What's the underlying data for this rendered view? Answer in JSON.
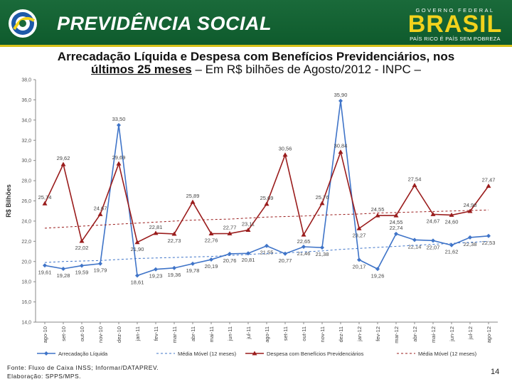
{
  "header": {
    "brand": "PREVIDÊNCIA SOCIAL",
    "gov_top": "GOVERNO FEDERAL",
    "gov_brasil": "BRASIL",
    "gov_motto": "PAÍS RICO É PAÍS SEM POBREZA",
    "colors": {
      "green": "#1a6a3a",
      "yellow": "#f2d21c",
      "blue": "#1e5aa8"
    }
  },
  "title": {
    "line1": "Arrecadação Líquida e Despesa com Benefícios Previdenciários, nos",
    "line2_bold": "últimos 25 meses",
    "line2_rest": " – Em R$ bilhões de Agosto/2012 - INPC –"
  },
  "chart_data": {
    "type": "line",
    "ylabel": "R$ Bilhões",
    "ylim": [
      14.0,
      38.0
    ],
    "yticks": [
      "14,0",
      "16,0",
      "18,0",
      "20,0",
      "22,0",
      "24,0",
      "26,0",
      "28,0",
      "30,0",
      "32,0",
      "34,0",
      "36,0",
      "38,0"
    ],
    "categories": [
      "ago-10",
      "set-10",
      "out-10",
      "nov-10",
      "dez-10",
      "jan-11",
      "fev-11",
      "mar-11",
      "abr-11",
      "mai-11",
      "jun-11",
      "jul-11",
      "ago-11",
      "set-11",
      "out-11",
      "nov-11",
      "dez-11",
      "jan-12",
      "fev-12",
      "mar-12",
      "abr-12",
      "mai-12",
      "jun-12",
      "jul-12",
      "ago-12"
    ],
    "series": [
      {
        "name": "Arrecadação Líquida",
        "color": "#3f74c8",
        "values": [
          19.61,
          19.28,
          19.59,
          19.79,
          33.5,
          18.61,
          19.23,
          19.36,
          19.78,
          20.19,
          20.76,
          20.81,
          21.55,
          20.77,
          21.46,
          21.38,
          35.9,
          20.17,
          19.26,
          22.74,
          22.14,
          22.07,
          21.62,
          22.38,
          22.53
        ],
        "labels": [
          "19,61",
          "19,28",
          "19,59",
          "19,79",
          "33,50",
          "18,61",
          "19,23",
          "19,36",
          "19,78",
          "20,19",
          "20,76",
          "20,81",
          "21,55",
          "20,77",
          "21,46",
          "21,38",
          "35,90",
          "20,17",
          "19,26",
          "22,74",
          "22,14",
          "22,07",
          "21,62",
          "22,38",
          "22,53"
        ]
      },
      {
        "name": "Média Móvel (12 meses)",
        "color": "#3f74c8",
        "dashed": true,
        "values": [
          19.9,
          20.0,
          20.05,
          20.1,
          20.2,
          20.3,
          20.35,
          20.4,
          20.45,
          20.5,
          20.6,
          20.7,
          20.8,
          20.85,
          20.95,
          21.05,
          21.2,
          21.3,
          21.4,
          21.5,
          21.6,
          21.7,
          21.8,
          21.9,
          22.0
        ]
      },
      {
        "name": "Despesa com Benefícios Previdenciários",
        "color": "#9a1c1c",
        "values": [
          25.74,
          29.62,
          22.02,
          24.67,
          29.69,
          21.9,
          22.81,
          22.73,
          25.89,
          22.76,
          22.77,
          23.11,
          25.69,
          30.56,
          22.65,
          25.76,
          30.84,
          23.27,
          24.55,
          24.55,
          27.54,
          24.67,
          24.6,
          24.98,
          27.47
        ],
        "labels": [
          "25,74",
          "29,62",
          "22,02",
          "24,67",
          "29,69",
          "21,90",
          "22,81",
          "22,73",
          "25,89",
          "22,76",
          "22,77",
          "23,11",
          "25,69",
          "30,56",
          "22,65",
          "25,76",
          "30,84",
          "23,27",
          "24,55",
          "24,55",
          "27,54",
          "24,67",
          "24,60",
          "24,98",
          "27,47"
        ]
      },
      {
        "name": "Média Móvel (12 meses)",
        "color": "#9a1c1c",
        "dashed": true,
        "values": [
          23.3,
          23.4,
          23.5,
          23.6,
          23.7,
          23.8,
          23.9,
          24.0,
          24.1,
          24.15,
          24.2,
          24.3,
          24.4,
          24.45,
          24.5,
          24.6,
          24.65,
          24.7,
          24.8,
          24.85,
          24.9,
          24.95,
          25.0,
          25.05,
          25.1
        ]
      }
    ],
    "legend_position": "bottom"
  },
  "footer": {
    "source": "Fonte: Fluxo de Caixa INSS; Informar/DATAPREV.",
    "elaboration": "Elaboração: SPPS/MPS.",
    "page": "14"
  }
}
